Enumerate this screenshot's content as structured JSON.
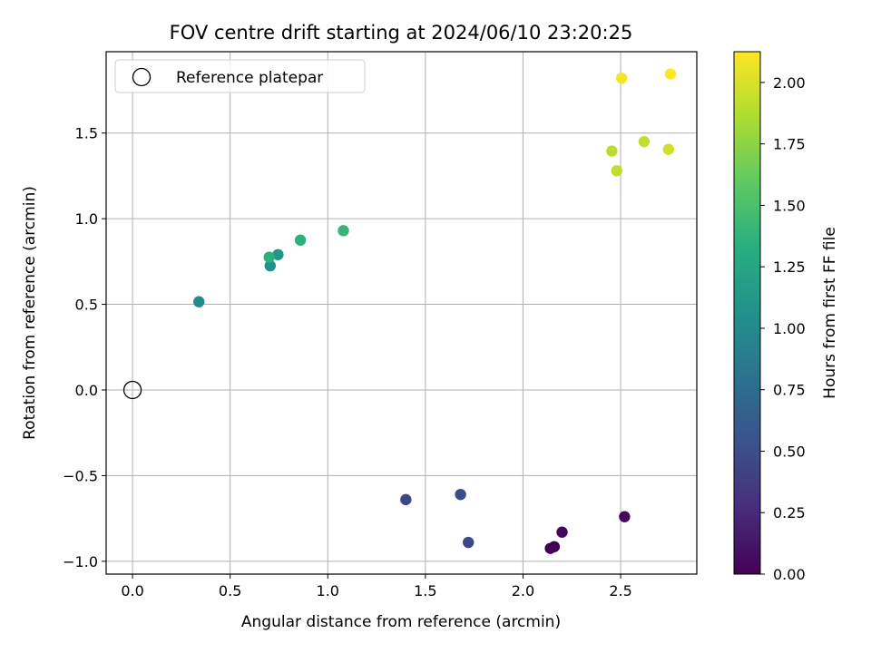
{
  "chart_data": {
    "type": "scatter",
    "title": "FOV centre drift starting at 2024/06/10 23:20:25",
    "xlabel": "Angular distance from reference (arcmin)",
    "ylabel": "Rotation from reference (arcmin)",
    "xlim": [
      -0.135,
      2.89
    ],
    "ylim": [
      -1.075,
      1.975
    ],
    "xticks": [
      0.0,
      0.5,
      1.0,
      1.5,
      2.0,
      2.5
    ],
    "xtick_labels": [
      "0.0",
      "0.5",
      "1.0",
      "1.5",
      "2.0",
      "2.5"
    ],
    "yticks": [
      -1.0,
      -0.5,
      0.0,
      0.5,
      1.0,
      1.5
    ],
    "ytick_labels": [
      "−1.0",
      "−0.5",
      "0.0",
      "0.5",
      "1.0",
      "1.5"
    ],
    "grid": true,
    "legend": {
      "label": "Reference platepar",
      "position": "top-left",
      "marker": "hollow-circle"
    },
    "reference_point": {
      "x": 0.0,
      "y": 0.0
    },
    "colorbar": {
      "label": "Hours from first FF file",
      "colormap": "viridis",
      "range": [
        0.0,
        2.125
      ],
      "ticks": [
        0.0,
        0.25,
        0.5,
        0.75,
        1.0,
        1.25,
        1.5,
        1.75,
        2.0
      ],
      "tick_labels": [
        "0.00",
        "0.25",
        "0.50",
        "0.75",
        "1.00",
        "1.25",
        "1.50",
        "1.75",
        "2.00"
      ]
    },
    "points": [
      {
        "x": 2.14,
        "y": -0.925,
        "hours": 0.0
      },
      {
        "x": 2.16,
        "y": -0.915,
        "hours": 0.0
      },
      {
        "x": 2.2,
        "y": -0.83,
        "hours": 0.04
      },
      {
        "x": 2.52,
        "y": -0.74,
        "hours": 0.04
      },
      {
        "x": 1.72,
        "y": -0.89,
        "hours": 0.45
      },
      {
        "x": 1.4,
        "y": -0.64,
        "hours": 0.45
      },
      {
        "x": 1.68,
        "y": -0.61,
        "hours": 0.5
      },
      {
        "x": 0.34,
        "y": 0.515,
        "hours": 1.0
      },
      {
        "x": 0.705,
        "y": 0.725,
        "hours": 1.05
      },
      {
        "x": 0.745,
        "y": 0.79,
        "hours": 1.1
      },
      {
        "x": 0.7,
        "y": 0.775,
        "hours": 1.35
      },
      {
        "x": 0.86,
        "y": 0.875,
        "hours": 1.35
      },
      {
        "x": 1.08,
        "y": 0.93,
        "hours": 1.4
      },
      {
        "x": 2.455,
        "y": 1.395,
        "hours": 1.9
      },
      {
        "x": 2.48,
        "y": 1.28,
        "hours": 1.92
      },
      {
        "x": 2.62,
        "y": 1.45,
        "hours": 1.92
      },
      {
        "x": 2.745,
        "y": 1.405,
        "hours": 1.98
      },
      {
        "x": 2.505,
        "y": 1.82,
        "hours": 2.1
      },
      {
        "x": 2.755,
        "y": 1.845,
        "hours": 2.12
      }
    ]
  }
}
